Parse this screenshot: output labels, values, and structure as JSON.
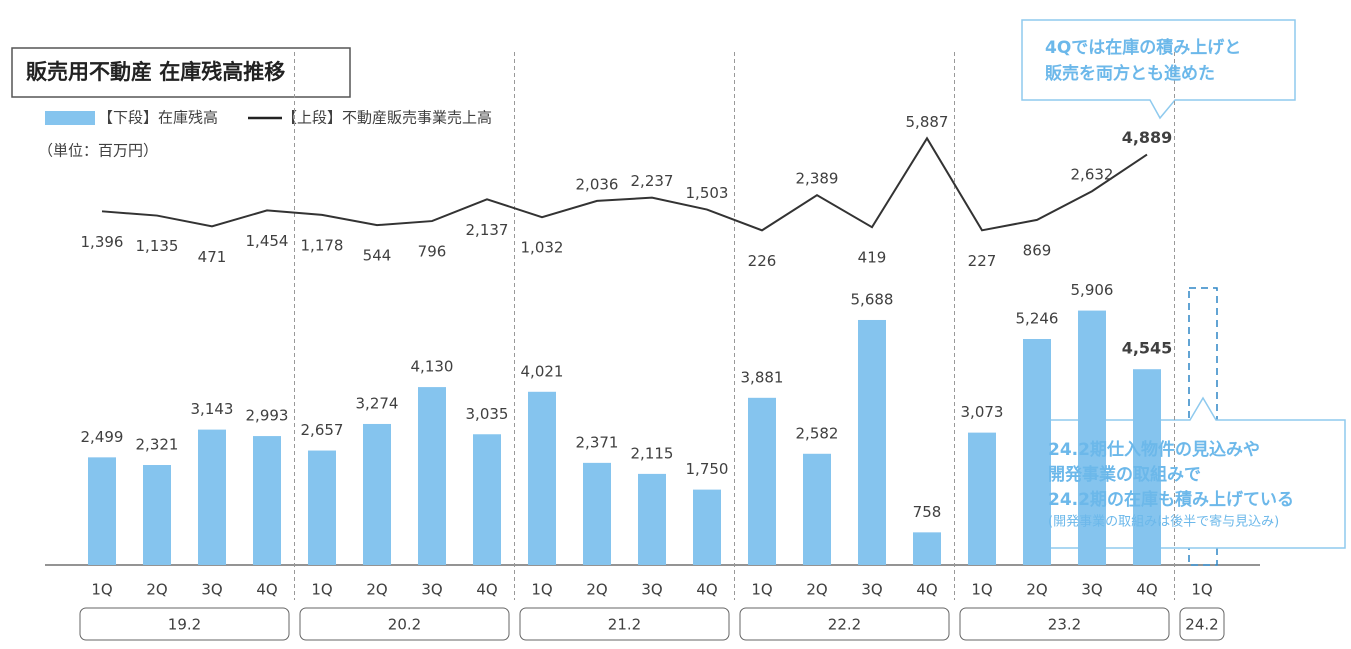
{
  "chart_data": {
    "type": "bar_line",
    "title": "販売用不動産 在庫残高推移",
    "unit": "（単位：百万円）",
    "categories": [
      "1Q",
      "2Q",
      "3Q",
      "4Q",
      "1Q",
      "2Q",
      "3Q",
      "4Q",
      "1Q",
      "2Q",
      "3Q",
      "4Q",
      "1Q",
      "2Q",
      "3Q",
      "4Q",
      "1Q",
      "2Q",
      "3Q",
      "4Q",
      "1Q"
    ],
    "groups": [
      "19.2",
      "20.2",
      "21.2",
      "22.2",
      "23.2",
      "24.2"
    ],
    "series": [
      {
        "name": "【下段】在庫残高",
        "color": "#85c4ee",
        "values": [
          2499,
          2321,
          3143,
          2993,
          2657,
          3274,
          4130,
          3035,
          4021,
          2371,
          2115,
          1750,
          3881,
          2582,
          5688,
          758,
          3073,
          5246,
          5906,
          4545,
          null
        ],
        "value_labels": [
          "2,499",
          "2,321",
          "3,143",
          "2,993",
          "2,657",
          "3,274",
          "4,130",
          "3,035",
          "4,021",
          "2,371",
          "2,115",
          "1,750",
          "3,881",
          "2,582",
          "5,688",
          "758",
          "3,073",
          "5,246",
          "5,906",
          "4,545",
          null
        ]
      },
      {
        "name": "【上段】不動産販売事業売上高",
        "color": "#333333",
        "axis": "y2",
        "values": [
          1396,
          1135,
          471,
          1454,
          1178,
          544,
          796,
          2137,
          1032,
          2036,
          2237,
          1503,
          226,
          2389,
          419,
          5887,
          227,
          869,
          2632,
          4889,
          null
        ],
        "value_labels": [
          "1,396",
          "1,135",
          "471",
          "1,454",
          "1,178",
          "544",
          "796",
          "2,137",
          "1,032",
          "2,036",
          "2,237",
          "1,503",
          "226",
          "2,389",
          "419",
          "5,887",
          "227",
          "869",
          "2,632",
          "4,889",
          null
        ]
      }
    ],
    "ylim": [
      0,
      6500
    ],
    "y2lim": [
      0,
      6400
    ],
    "annotations": [
      [
        "4Qでは在庫の積み上げと",
        "販売を両方とも進めた"
      ],
      [
        "24.2期仕入物件の見込みや",
        "開発事業の取組みで",
        "24.2期の在庫も積み上げている",
        "(開発事業の取組みは後半で寄与見込み)"
      ]
    ]
  }
}
